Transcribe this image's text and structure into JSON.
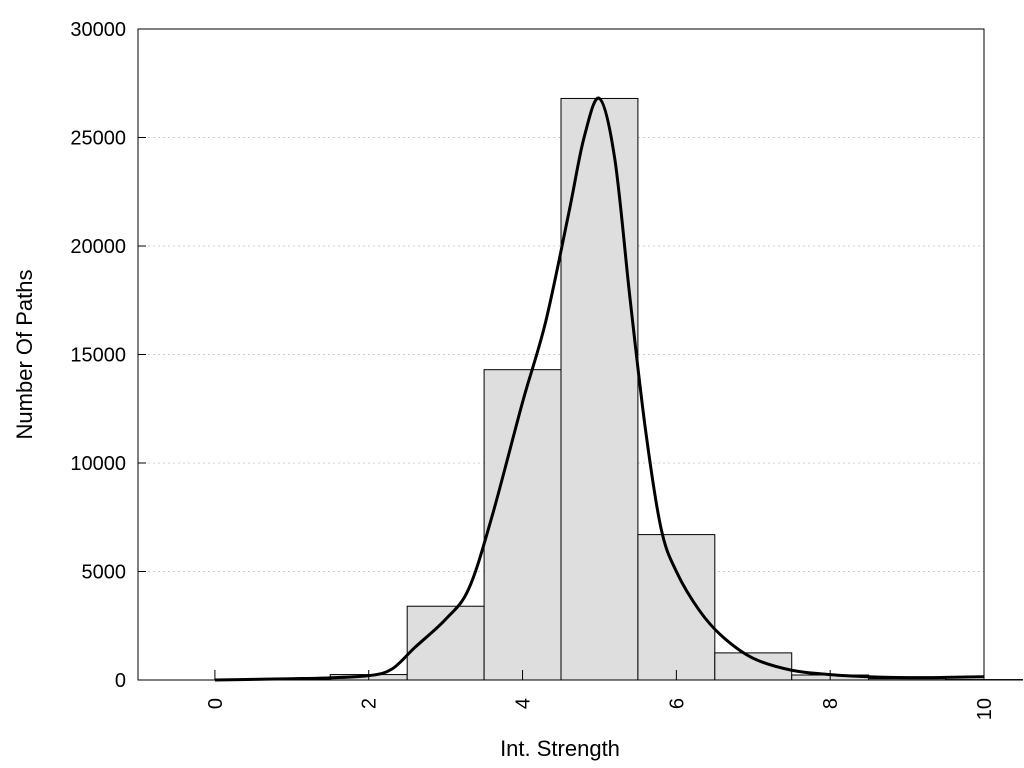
{
  "chart_data": {
    "type": "bar",
    "xlabel": "Int. Strength",
    "ylabel": "Number Of Paths",
    "xlim": [
      -1,
      10
    ],
    "ylim": [
      0,
      30000
    ],
    "x_ticks": [
      0,
      2,
      4,
      6,
      8,
      10
    ],
    "x_tick_labels": [
      "0",
      "2",
      "4",
      "6",
      "8",
      "10"
    ],
    "y_ticks": [
      0,
      5000,
      10000,
      15000,
      20000,
      25000,
      30000
    ],
    "y_tick_labels": [
      "0",
      "5000",
      "10000",
      "15000",
      "20000",
      "25000",
      "30000"
    ],
    "grid": "horizontal dotted",
    "bins": [
      {
        "x": 0,
        "value": 0
      },
      {
        "x": 1,
        "value": 30
      },
      {
        "x": 2,
        "value": 250
      },
      {
        "x": 3,
        "value": 3400
      },
      {
        "x": 4,
        "value": 14300
      },
      {
        "x": 5,
        "value": 26800
      },
      {
        "x": 6,
        "value": 6700
      },
      {
        "x": 7,
        "value": 1250
      },
      {
        "x": 8,
        "value": 230
      },
      {
        "x": 9,
        "value": 60
      },
      {
        "x": 10,
        "value": 20
      }
    ],
    "curve": {
      "x": [
        0,
        0.5,
        1,
        1.5,
        2,
        2.3,
        2.6,
        3,
        3.3,
        3.6,
        4,
        4.3,
        4.6,
        4.8,
        5,
        5.2,
        5.4,
        5.6,
        5.8,
        6,
        6.3,
        6.6,
        7,
        7.5,
        8,
        8.5,
        9,
        9.5,
        10
      ],
      "y": [
        0,
        30,
        60,
        100,
        200,
        500,
        1500,
        2800,
        4200,
        7500,
        12800,
        16500,
        21500,
        25000,
        26800,
        24000,
        17500,
        11500,
        7000,
        5000,
        3200,
        2000,
        1000,
        450,
        250,
        150,
        110,
        120,
        150
      ]
    },
    "colors": {
      "bar_fill": "#dedede",
      "bar_stroke": "#000000",
      "curve": "#000000",
      "grid": "#cccccc"
    }
  }
}
